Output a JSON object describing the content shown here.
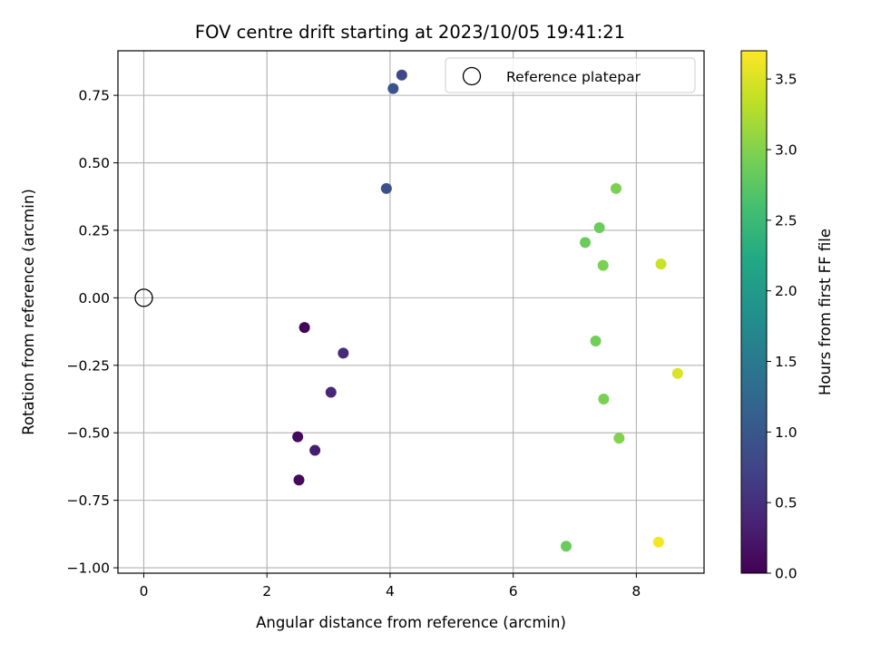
{
  "chart_data": {
    "type": "scatter",
    "title": "FOV centre drift starting at 2023/10/05 19:41:21",
    "xlabel": "Angular distance from reference (arcmin)",
    "ylabel": "Rotation from reference (arcmin)",
    "xlim": [
      -0.42,
      9.1
    ],
    "ylim": [
      -1.02,
      0.915
    ],
    "xticks": [
      0,
      2,
      4,
      6,
      8
    ],
    "xtick_labels": [
      "0",
      "2",
      "4",
      "6",
      "8"
    ],
    "yticks": [
      -1.0,
      -0.75,
      -0.5,
      -0.25,
      0.0,
      0.25,
      0.5,
      0.75
    ],
    "ytick_labels": [
      "−1.00",
      "−0.75",
      "−0.50",
      "−0.25",
      "0.00",
      "0.25",
      "0.50",
      "0.75"
    ],
    "grid": true,
    "legend": {
      "position": "top-right",
      "entries": [
        "Reference platepar"
      ]
    },
    "reference_point": {
      "x": 0.0,
      "y": 0.0,
      "marker": "open-circle"
    },
    "colorbar": {
      "label": "Hours from first FF file",
      "colormap": "viridis",
      "range": [
        0.0,
        3.7
      ],
      "ticks": [
        0.0,
        0.5,
        1.0,
        1.5,
        2.0,
        2.5,
        3.0,
        3.5
      ],
      "tick_labels": [
        "0.0",
        "0.5",
        "1.0",
        "1.5",
        "2.0",
        "2.5",
        "3.0",
        "3.5"
      ]
    },
    "points": [
      {
        "x": 2.61,
        "y": -0.11,
        "hours": 0.05
      },
      {
        "x": 2.5,
        "y": -0.515,
        "hours": 0.1
      },
      {
        "x": 2.52,
        "y": -0.675,
        "hours": 0.1
      },
      {
        "x": 2.78,
        "y": -0.565,
        "hours": 0.3
      },
      {
        "x": 3.04,
        "y": -0.35,
        "hours": 0.4
      },
      {
        "x": 3.24,
        "y": -0.205,
        "hours": 0.45
      },
      {
        "x": 3.94,
        "y": 0.405,
        "hours": 0.9
      },
      {
        "x": 4.05,
        "y": 0.775,
        "hours": 0.95
      },
      {
        "x": 4.19,
        "y": 0.825,
        "hours": 0.8
      },
      {
        "x": 6.86,
        "y": -0.92,
        "hours": 2.85
      },
      {
        "x": 7.17,
        "y": 0.205,
        "hours": 2.85
      },
      {
        "x": 7.34,
        "y": -0.16,
        "hours": 2.9
      },
      {
        "x": 7.4,
        "y": 0.26,
        "hours": 2.85
      },
      {
        "x": 7.46,
        "y": 0.12,
        "hours": 2.95
      },
      {
        "x": 7.47,
        "y": -0.375,
        "hours": 2.95
      },
      {
        "x": 7.67,
        "y": 0.405,
        "hours": 2.95
      },
      {
        "x": 7.72,
        "y": -0.52,
        "hours": 3.0
      },
      {
        "x": 8.36,
        "y": -0.905,
        "hours": 3.65
      },
      {
        "x": 8.4,
        "y": 0.125,
        "hours": 3.4
      },
      {
        "x": 8.67,
        "y": -0.28,
        "hours": 3.5
      }
    ]
  }
}
